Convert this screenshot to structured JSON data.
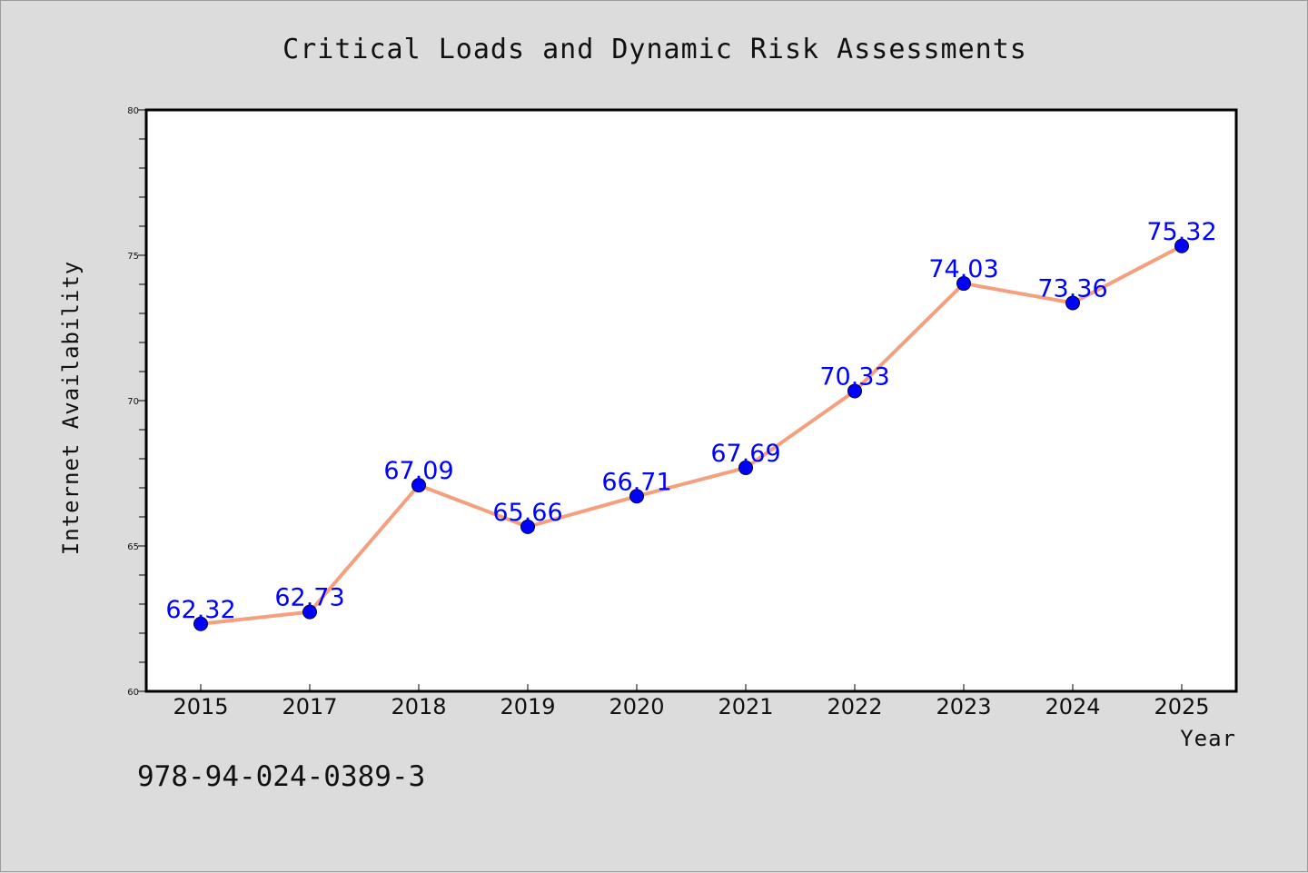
{
  "chart_data": {
    "type": "line",
    "title": "Critical Loads and Dynamic Risk Assessments",
    "xlabel": "Year",
    "ylabel": "Internet Availability",
    "categories": [
      "2015",
      "2017",
      "2018",
      "2019",
      "2020",
      "2021",
      "2022",
      "2023",
      "2024",
      "2025"
    ],
    "series": [
      {
        "values": [
          62.32,
          62.73,
          67.09,
          65.66,
          66.71,
          67.69,
          70.33,
          74.03,
          73.36,
          75.32
        ],
        "data_labels": [
          "62.32",
          "62.73",
          "67.09",
          "65.66",
          "66.71",
          "67.69",
          "70.33",
          "74.03",
          "73.36",
          "75.32"
        ],
        "line_color": "#f4a07e",
        "marker_color": "#0000ff"
      }
    ],
    "ylim": [
      60,
      80
    ],
    "yticks": [
      "60",
      "65",
      "70",
      "75",
      "80"
    ],
    "grid": false,
    "legend": "none"
  },
  "annotation": "978-94-024-0389-3",
  "colors": {
    "figure_background": "#dcdcdc",
    "plot_background": "#ffffff",
    "line": "#f4a07e",
    "marker": "#0000ff",
    "data_label": "#0000ff"
  }
}
